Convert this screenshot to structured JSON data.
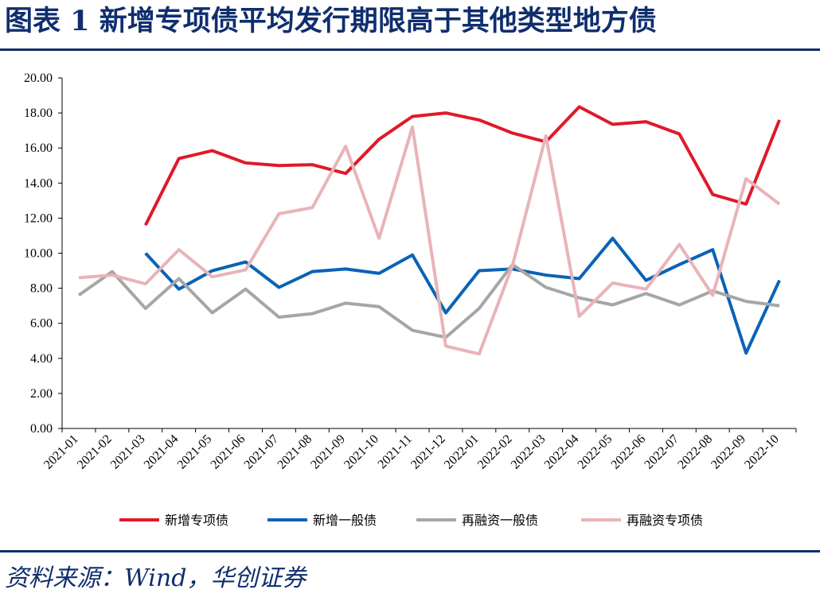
{
  "header": {
    "title": "图表 1  新增专项债平均发行期限高于其他类型地方债"
  },
  "footer": {
    "source": "资料来源：Wind，华创证券"
  },
  "chart_data": {
    "type": "line",
    "title": "图表 1  新增专项债平均发行期限高于其他类型地方债",
    "xlabel": "",
    "ylabel": "",
    "ylim": [
      0,
      20
    ],
    "yticks": [
      "0.00",
      "2.00",
      "4.00",
      "6.00",
      "8.00",
      "10.00",
      "12.00",
      "14.00",
      "16.00",
      "18.00",
      "20.00"
    ],
    "grid": false,
    "legend_position": "bottom",
    "categories": [
      "2021-01",
      "2021-02",
      "2021-03",
      "2021-04",
      "2021-05",
      "2021-06",
      "2021-07",
      "2021-08",
      "2021-09",
      "2021-10",
      "2021-11",
      "2021-12",
      "2022-01",
      "2022-02",
      "2022-03",
      "2022-04",
      "2022-05",
      "2022-06",
      "2022-07",
      "2022-08",
      "2022-09",
      "2022-10"
    ],
    "series": [
      {
        "name": "新增专项债",
        "color": "#e0192a",
        "values": [
          null,
          null,
          11.6,
          15.4,
          15.85,
          15.15,
          15.0,
          15.05,
          14.55,
          16.5,
          17.8,
          18.0,
          17.6,
          16.85,
          16.35,
          18.35,
          17.35,
          17.5,
          16.8,
          13.35,
          12.8,
          17.6
        ]
      },
      {
        "name": "新增一般债",
        "color": "#0a63b5",
        "values": [
          null,
          null,
          10.0,
          7.95,
          9.0,
          9.5,
          8.05,
          8.95,
          9.1,
          8.85,
          9.9,
          6.6,
          9.0,
          9.1,
          8.75,
          8.55,
          10.85,
          8.45,
          9.35,
          10.2,
          4.3,
          8.45
        ]
      },
      {
        "name": "再融资一般债",
        "color": "#a6a6a6",
        "values": [
          7.6,
          8.95,
          6.85,
          8.55,
          6.6,
          7.95,
          6.35,
          6.55,
          7.15,
          6.95,
          5.6,
          5.2,
          6.85,
          9.35,
          8.05,
          7.45,
          7.05,
          7.7,
          7.05,
          7.85,
          7.25,
          7.0
        ]
      },
      {
        "name": "再融资专项债",
        "color": "#e8b4b8",
        "values": [
          8.6,
          8.75,
          8.25,
          10.2,
          8.65,
          9.05,
          12.25,
          12.6,
          16.1,
          10.85,
          17.2,
          4.7,
          4.25,
          9.3,
          16.7,
          6.4,
          8.3,
          7.95,
          10.5,
          7.6,
          14.25,
          12.8
        ]
      }
    ]
  }
}
